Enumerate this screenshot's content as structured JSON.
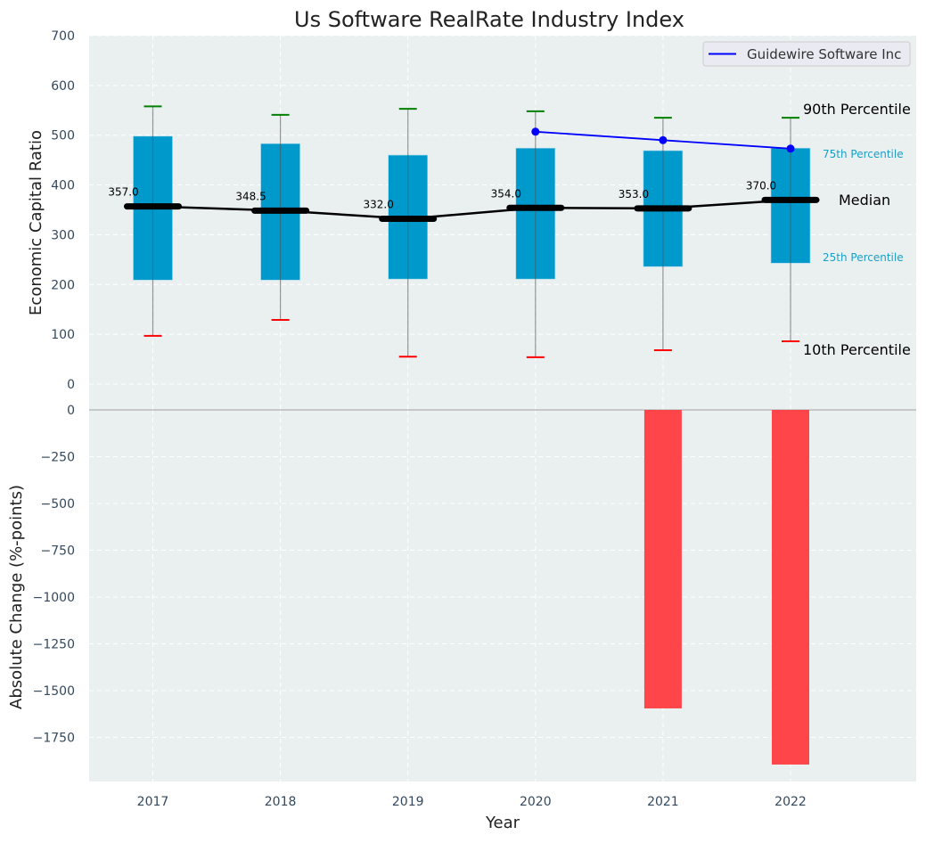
{
  "chart_data": [
    {
      "type": "box",
      "title": "Us Software RealRate Industry Index",
      "xlabel": "",
      "ylabel": "Economic Capital Ratio",
      "ylim": [
        0,
        700
      ],
      "yticks": [
        0,
        100,
        200,
        300,
        400,
        500,
        600,
        700
      ],
      "grid": true,
      "categories": [
        "2017",
        "2018",
        "2019",
        "2020",
        "2021",
        "2022"
      ],
      "p10": [
        97,
        129,
        55,
        54,
        68,
        86
      ],
      "p25": [
        209,
        209,
        211,
        211,
        236,
        243
      ],
      "median": [
        357.0,
        348.5,
        332.0,
        354.0,
        353.0,
        370.0
      ],
      "median_labels": [
        "357.0",
        "348.5",
        "332.0",
        "354.0",
        "353.0",
        "370.0"
      ],
      "p75": [
        498,
        483,
        460,
        474,
        469,
        474
      ],
      "p90": [
        558,
        541,
        553,
        548,
        535,
        535
      ],
      "company_series": {
        "name": "Guidewire Software Inc",
        "categories": [
          "2020",
          "2021",
          "2022"
        ],
        "values": [
          507,
          490,
          473
        ]
      },
      "legend": {
        "position": "top-right",
        "entries": [
          "Guidewire Software Inc"
        ]
      },
      "annotations": {
        "p90": "90th Percentile",
        "p75": "75th Percentile",
        "median": "Median",
        "p25": "25th Percentile",
        "p10": "10th Percentile"
      }
    },
    {
      "type": "bar",
      "title": "",
      "xlabel": "Year",
      "ylabel": "Absolute Change (%-points)",
      "ylim": [
        -1980,
        0
      ],
      "yticks": [
        0,
        -250,
        -500,
        -750,
        -1000,
        -1250,
        -1500,
        -1750
      ],
      "ytick_labels": [
        "0",
        "−250",
        "−500",
        "−750",
        "−1000",
        "−1250",
        "−1500",
        "−1750"
      ],
      "grid": true,
      "categories": [
        "2017",
        "2018",
        "2019",
        "2020",
        "2021",
        "2022"
      ],
      "values": [
        null,
        null,
        null,
        null,
        -1595,
        -1895
      ]
    }
  ],
  "colors": {
    "box": "#0099cc",
    "median": "#000000",
    "p90_cap": "#008000",
    "p10_cap": "#ff0000",
    "company": "#0000ff",
    "bar_negative": "#ff3b3f",
    "plot_bg": "#eaeff0",
    "tick_text": "#34495e",
    "annotation_pct": "#1a9fc9"
  }
}
